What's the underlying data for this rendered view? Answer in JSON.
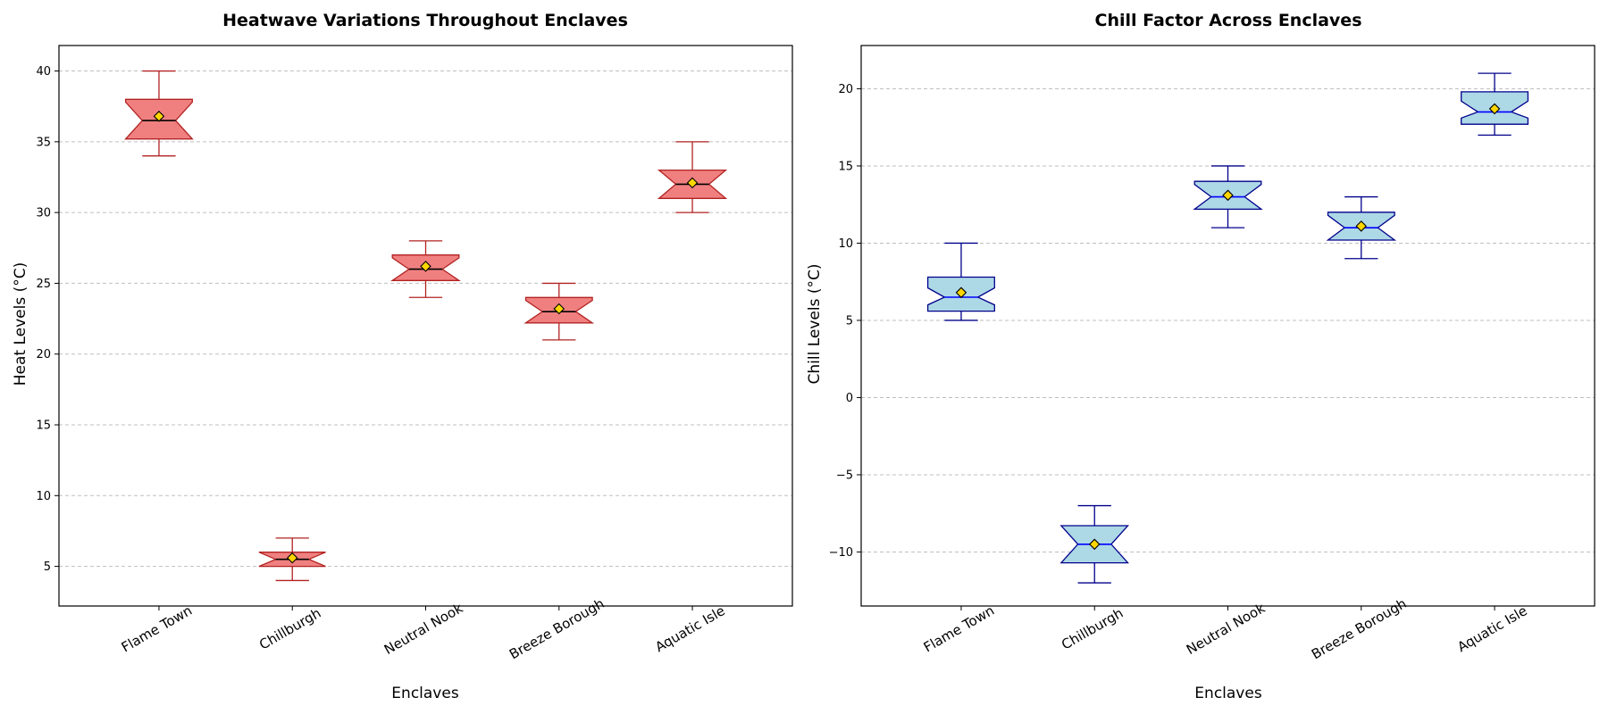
{
  "chart_data": [
    {
      "type": "box",
      "title": "Heatwave Variations Throughout Enclaves",
      "xlabel": "Enclaves",
      "ylabel": "Heat Levels (°C)",
      "ylim": [
        2.2,
        41.8
      ],
      "yticks": [
        5,
        10,
        15,
        20,
        25,
        30,
        35,
        40
      ],
      "grid": "y-dashed",
      "notched": true,
      "colors": {
        "box_fill": "#f08080",
        "box_edge": "#b22222",
        "whisker": "#b22222",
        "median": "#000000",
        "mean_marker": "#ffd700"
      },
      "categories": [
        "Flame Town",
        "Chillburgh",
        "Neutral Nook",
        "Breeze Borough",
        "Aquatic Isle"
      ],
      "boxes": [
        {
          "min": 34,
          "q1": 35.2,
          "median": 36.5,
          "q3": 38,
          "max": 40,
          "mean": 36.8,
          "notch_low": 35.2,
          "notch_high": 37.8
        },
        {
          "min": 4,
          "q1": 5,
          "median": 5.5,
          "q3": 6,
          "max": 7,
          "mean": 5.6,
          "notch_low": 5.0,
          "notch_high": 6.0
        },
        {
          "min": 24,
          "q1": 25.2,
          "median": 26,
          "q3": 27,
          "max": 28,
          "mean": 26.2,
          "notch_low": 25.2,
          "notch_high": 26.8
        },
        {
          "min": 21,
          "q1": 22.2,
          "median": 23,
          "q3": 24,
          "max": 25,
          "mean": 23.2,
          "notch_low": 22.2,
          "notch_high": 23.8
        },
        {
          "min": 30,
          "q1": 31,
          "median": 32,
          "q3": 33,
          "max": 35,
          "mean": 32.1,
          "notch_low": 31.0,
          "notch_high": 33.0
        }
      ]
    },
    {
      "type": "box",
      "title": "Chill Factor Across Enclaves",
      "xlabel": "Enclaves",
      "ylabel": "Chill Levels (°C)",
      "ylim": [
        -13.5,
        22.8
      ],
      "yticks": [
        -10,
        -5,
        0,
        5,
        10,
        15,
        20
      ],
      "grid": "y-dashed",
      "notched": true,
      "colors": {
        "box_fill": "#add8e6",
        "box_edge": "#00008b",
        "whisker": "#00008b",
        "median": "#0000ff",
        "mean_marker": "#ffd700"
      },
      "categories": [
        "Flame Town",
        "Chillburgh",
        "Neutral Nook",
        "Breeze Borough",
        "Aquatic Isle"
      ],
      "boxes": [
        {
          "min": 5,
          "q1": 5.6,
          "median": 6.5,
          "q3": 7.8,
          "max": 10,
          "mean": 6.8,
          "notch_low": 6.0,
          "notch_high": 7.1
        },
        {
          "min": -12,
          "q1": -10.7,
          "median": -9.5,
          "q3": -8.3,
          "max": -7,
          "mean": -9.5,
          "notch_low": -10.7,
          "notch_high": -8.3
        },
        {
          "min": 11,
          "q1": 12.2,
          "median": 13,
          "q3": 14,
          "max": 15,
          "mean": 13.1,
          "notch_low": 12.2,
          "notch_high": 13.8
        },
        {
          "min": 9,
          "q1": 10.2,
          "median": 11,
          "q3": 12,
          "max": 13,
          "mean": 11.1,
          "notch_low": 10.2,
          "notch_high": 11.8
        },
        {
          "min": 17,
          "q1": 17.7,
          "median": 18.5,
          "q3": 19.8,
          "max": 21,
          "mean": 18.7,
          "notch_low": 18.1,
          "notch_high": 19.2
        }
      ]
    }
  ]
}
